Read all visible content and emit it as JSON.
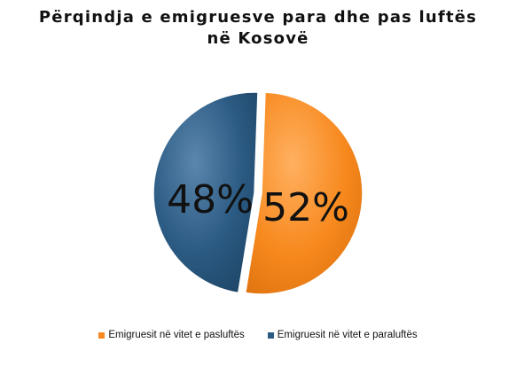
{
  "chart_data": {
    "type": "pie",
    "title": [
      "Përqindja e emigruesve para dhe pas luftës",
      "në Kosovë"
    ],
    "slices": [
      {
        "name": "Emigruesit në vitet e pasluftës",
        "value": 52,
        "label": "52%",
        "color": "#f7891e"
      },
      {
        "name": "Emigruesit në vitet e paraluftës",
        "value": 48,
        "label": "48%",
        "color": "#2b5a82"
      }
    ],
    "legend_position": "bottom"
  }
}
